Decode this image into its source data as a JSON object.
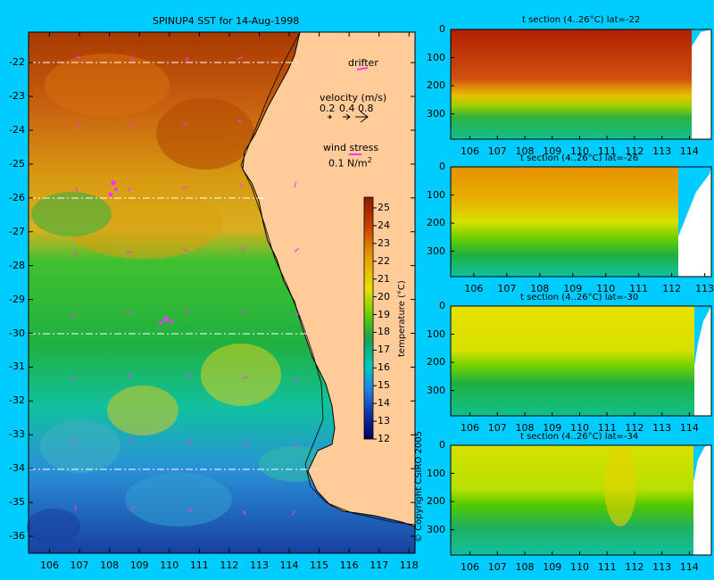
{
  "map": {
    "title": "SPINUP4 SST for 14-Aug-1998",
    "drifter_label": "drifter",
    "velocity_label": "velocity (m/s)",
    "velocity_scale": [
      "0.2",
      "0.4",
      "0.8"
    ],
    "wind_label": "wind stress",
    "wind_scale": "0.1 N/m",
    "wind_scale_sup": "2",
    "colorbar_label": "temperature (°C)",
    "copyright": "© Copyright CSIRO 2005"
  },
  "colors": {
    "background": "#00ccff",
    "land": "#ffcc99",
    "vectors": "#ff33ff",
    "coast": "#000000"
  },
  "chart_data": [
    {
      "type": "heatmap",
      "title": "SPINUP4 SST for 14-Aug-1998",
      "x_ticks": [
        106,
        107,
        108,
        109,
        110,
        111,
        112,
        113,
        114,
        115,
        116,
        117,
        118
      ],
      "y_ticks": [
        -22,
        -23,
        -24,
        -25,
        -26,
        -27,
        -28,
        -29,
        -30,
        -31,
        -32,
        -33,
        -34,
        -35,
        -36
      ],
      "xlim": [
        105.3,
        118.2
      ],
      "ylim": [
        -36.5,
        -21.1
      ],
      "section_lines_lat": [
        -22,
        -26,
        -30,
        -34
      ],
      "colorbar": {
        "label": "temperature (°C)",
        "ticks": [
          25,
          24,
          23,
          22,
          21,
          20,
          19,
          18,
          17,
          16,
          15,
          14,
          13,
          12
        ],
        "range": [
          12,
          25.6
        ]
      }
    },
    {
      "type": "heatmap",
      "title": "t section (4..26°C) lat=-22",
      "x_ticks": [
        "106",
        "107",
        "108",
        "109",
        "110",
        "111",
        "112",
        "113",
        "114"
      ],
      "y_ticks": [
        "0",
        "100",
        "200",
        "300"
      ],
      "xlim": [
        105.3,
        114.8
      ],
      "ylim_depth": [
        0,
        390
      ]
    },
    {
      "type": "heatmap",
      "title": "t section (4..26°C) lat=-26",
      "x_ticks": [
        "106",
        "107",
        "108",
        "109",
        "110",
        "111",
        "112",
        "113"
      ],
      "y_ticks": [
        "0",
        "100",
        "200",
        "300"
      ],
      "xlim": [
        105.3,
        113.2
      ],
      "ylim_depth": [
        0,
        390
      ]
    },
    {
      "type": "heatmap",
      "title": "t section (4..26°C) lat=-30",
      "x_ticks": [
        "106",
        "107",
        "108",
        "109",
        "110",
        "111",
        "112",
        "113",
        "114"
      ],
      "y_ticks": [
        "0",
        "100",
        "200",
        "300"
      ],
      "xlim": [
        105.3,
        114.8
      ],
      "ylim_depth": [
        0,
        390
      ]
    },
    {
      "type": "heatmap",
      "title": "t section (4..26°C) lat=-34",
      "x_ticks": [
        "106",
        "107",
        "108",
        "109",
        "110",
        "111",
        "112",
        "113",
        "114"
      ],
      "y_ticks": [
        "0",
        "100",
        "200",
        "300"
      ],
      "xlim": [
        105.3,
        114.8
      ],
      "ylim_depth": [
        0,
        390
      ]
    }
  ]
}
